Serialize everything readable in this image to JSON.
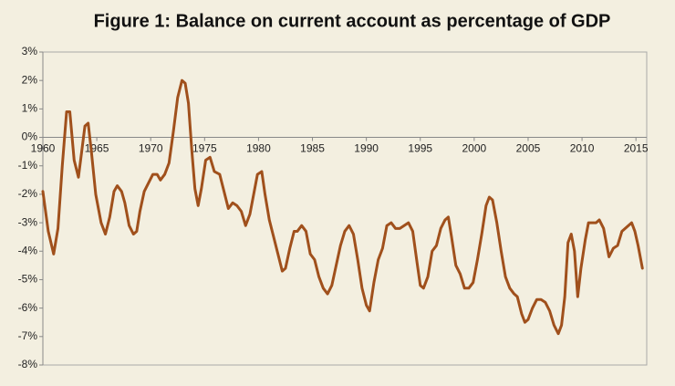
{
  "chart_data": {
    "type": "line",
    "title": "Figure 1: Balance on current account as percentage of GDP",
    "color": "#a0501c",
    "grid": false,
    "xlim": [
      1960,
      2016
    ],
    "xticks": [
      1960,
      1965,
      1970,
      1975,
      1980,
      1985,
      1990,
      1995,
      2000,
      2005,
      2010,
      2015
    ],
    "ylim": [
      -8,
      3
    ],
    "yticks": [
      {
        "value": 3,
        "label": "3%"
      },
      {
        "value": 2,
        "label": "2%"
      },
      {
        "value": 1,
        "label": "1%"
      },
      {
        "value": 0,
        "label": "0%"
      },
      {
        "value": -1,
        "label": "-1%"
      },
      {
        "value": -2,
        "label": "-2%"
      },
      {
        "value": -3,
        "label": "-3%"
      },
      {
        "value": -4,
        "label": "-4%"
      },
      {
        "value": -5,
        "label": "-5%"
      },
      {
        "value": -6,
        "label": "-6%"
      },
      {
        "value": -7,
        "label": "-7%"
      },
      {
        "value": -8,
        "label": "-8%"
      }
    ],
    "x": [
      1960.0,
      1960.5,
      1961.0,
      1961.4,
      1961.8,
      1962.2,
      1962.5,
      1962.9,
      1963.3,
      1963.6,
      1963.9,
      1964.2,
      1964.5,
      1964.9,
      1965.4,
      1965.8,
      1966.2,
      1966.6,
      1966.9,
      1967.3,
      1967.6,
      1968.0,
      1968.4,
      1968.7,
      1969.0,
      1969.4,
      1969.8,
      1970.2,
      1970.6,
      1970.9,
      1971.3,
      1971.7,
      1972.1,
      1972.5,
      1972.9,
      1973.2,
      1973.5,
      1973.8,
      1974.1,
      1974.4,
      1974.7,
      1975.1,
      1975.5,
      1975.9,
      1976.4,
      1976.8,
      1977.2,
      1977.6,
      1978.0,
      1978.4,
      1978.8,
      1979.2,
      1979.6,
      1979.9,
      1980.3,
      1980.6,
      1981.0,
      1981.4,
      1981.8,
      1982.2,
      1982.5,
      1982.9,
      1983.3,
      1983.6,
      1984.0,
      1984.4,
      1984.8,
      1985.2,
      1985.6,
      1986.0,
      1986.4,
      1986.8,
      1987.2,
      1987.6,
      1988.0,
      1988.4,
      1988.8,
      1989.2,
      1989.6,
      1990.0,
      1990.3,
      1990.7,
      1991.1,
      1991.5,
      1991.9,
      1992.3,
      1992.7,
      1993.1,
      1993.5,
      1993.9,
      1994.3,
      1994.7,
      1995.0,
      1995.3,
      1995.7,
      1996.1,
      1996.5,
      1996.9,
      1997.3,
      1997.6,
      1997.9,
      1998.3,
      1998.7,
      1999.1,
      1999.5,
      1999.9,
      2000.3,
      2000.7,
      2001.1,
      2001.4,
      2001.7,
      2002.1,
      2002.5,
      2002.9,
      2003.3,
      2003.7,
      2004.0,
      2004.4,
      2004.7,
      2005.0,
      2005.4,
      2005.8,
      2006.2,
      2006.6,
      2007.0,
      2007.4,
      2007.8,
      2008.1,
      2008.4,
      2008.7,
      2009.0,
      2009.3,
      2009.6,
      2009.9,
      2010.3,
      2010.6,
      2011.0,
      2011.3,
      2011.6,
      2012.0,
      2012.3,
      2012.5,
      2012.9,
      2013.3,
      2013.7,
      2014.0,
      2014.3,
      2014.6,
      2014.9,
      2015.2,
      2015.6
    ],
    "values": [
      -1.9,
      -3.3,
      -4.1,
      -3.2,
      -1.0,
      0.9,
      0.9,
      -0.8,
      -1.4,
      -0.5,
      0.4,
      0.5,
      -0.5,
      -2.0,
      -3.0,
      -3.4,
      -2.8,
      -1.9,
      -1.7,
      -1.9,
      -2.3,
      -3.1,
      -3.4,
      -3.3,
      -2.6,
      -1.9,
      -1.6,
      -1.3,
      -1.3,
      -1.5,
      -1.3,
      -0.9,
      0.2,
      1.4,
      2.0,
      1.9,
      1.2,
      -0.4,
      -1.8,
      -2.4,
      -1.8,
      -0.8,
      -0.7,
      -1.2,
      -1.3,
      -1.9,
      -2.5,
      -2.3,
      -2.4,
      -2.6,
      -3.1,
      -2.7,
      -1.9,
      -1.3,
      -1.2,
      -2.0,
      -2.9,
      -3.5,
      -4.1,
      -4.7,
      -4.6,
      -3.9,
      -3.3,
      -3.3,
      -3.1,
      -3.3,
      -4.1,
      -4.3,
      -4.9,
      -5.3,
      -5.5,
      -5.2,
      -4.5,
      -3.8,
      -3.3,
      -3.1,
      -3.4,
      -4.3,
      -5.3,
      -5.9,
      -6.1,
      -5.1,
      -4.3,
      -3.9,
      -3.1,
      -3.0,
      -3.2,
      -3.2,
      -3.1,
      -3.0,
      -3.3,
      -4.4,
      -5.2,
      -5.3,
      -4.9,
      -4.0,
      -3.8,
      -3.2,
      -2.9,
      -2.8,
      -3.5,
      -4.5,
      -4.8,
      -5.3,
      -5.3,
      -5.1,
      -4.3,
      -3.4,
      -2.4,
      -2.1,
      -2.2,
      -3.0,
      -4.0,
      -4.9,
      -5.3,
      -5.5,
      -5.6,
      -6.2,
      -6.5,
      -6.4,
      -6.0,
      -5.7,
      -5.7,
      -5.8,
      -6.1,
      -6.6,
      -6.9,
      -6.6,
      -5.6,
      -3.7,
      -3.4,
      -4.0,
      -5.6,
      -4.6,
      -3.6,
      -3.0,
      -3.0,
      -3.0,
      -2.9,
      -3.2,
      -3.8,
      -4.2,
      -3.9,
      -3.8,
      -3.3,
      -3.2,
      -3.1,
      -3.0,
      -3.3,
      -3.8,
      -4.6
    ]
  }
}
